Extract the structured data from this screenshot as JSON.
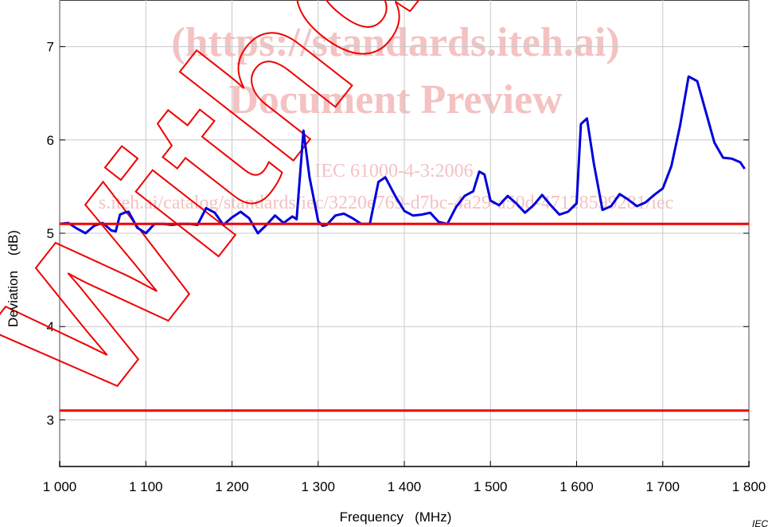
{
  "chart_data": {
    "type": "line",
    "xlabel": "Frequency   (MHz)",
    "ylabel": "Deviation    (dB)",
    "xlim": [
      1000,
      1800
    ],
    "ylim": [
      2.5,
      7.5
    ],
    "x_ticks": [
      1000,
      1100,
      1200,
      1300,
      1400,
      1500,
      1600,
      1700,
      1800
    ],
    "x_tick_labels": [
      "1 000",
      "1 100",
      "1 200",
      "1 300",
      "1 400",
      "1 500",
      "1 600",
      "1 700",
      "1 800"
    ],
    "y_ticks": [
      3,
      4,
      5,
      6,
      7
    ],
    "y_tick_labels": [
      "3",
      "4",
      "5",
      "6",
      "7"
    ],
    "grid": true,
    "series": [
      {
        "color": "#0000dd",
        "x": [
          1000,
          1010,
          1020,
          1030,
          1040,
          1050,
          1060,
          1065,
          1070,
          1075,
          1080,
          1090,
          1100,
          1110,
          1120,
          1130,
          1140,
          1150,
          1160,
          1170,
          1180,
          1190,
          1200,
          1210,
          1220,
          1230,
          1240,
          1250,
          1260,
          1270,
          1275,
          1283,
          1290,
          1300,
          1305,
          1310,
          1320,
          1330,
          1340,
          1350,
          1360,
          1370,
          1378,
          1390,
          1400,
          1410,
          1420,
          1430,
          1440,
          1450,
          1460,
          1470,
          1480,
          1487,
          1493,
          1500,
          1510,
          1520,
          1530,
          1540,
          1550,
          1560,
          1570,
          1580,
          1590,
          1600,
          1605,
          1612,
          1620,
          1630,
          1640,
          1650,
          1660,
          1670,
          1680,
          1690,
          1700,
          1710,
          1720,
          1730,
          1740,
          1750,
          1760,
          1770,
          1780,
          1790,
          1795
        ],
        "y": [
          5.1,
          5.11,
          5.05,
          5.0,
          5.08,
          5.11,
          5.03,
          5.02,
          5.2,
          5.22,
          5.23,
          5.06,
          5.0,
          5.1,
          5.1,
          5.09,
          5.1,
          5.1,
          5.09,
          5.27,
          5.22,
          5.09,
          5.17,
          5.23,
          5.16,
          5.0,
          5.09,
          5.19,
          5.11,
          5.18,
          5.15,
          6.1,
          5.6,
          5.13,
          5.08,
          5.09,
          5.19,
          5.21,
          5.16,
          5.1,
          5.1,
          5.55,
          5.6,
          5.39,
          5.24,
          5.19,
          5.2,
          5.22,
          5.12,
          5.1,
          5.28,
          5.4,
          5.45,
          5.66,
          5.63,
          5.35,
          5.3,
          5.4,
          5.32,
          5.22,
          5.3,
          5.41,
          5.3,
          5.2,
          5.23,
          5.32,
          6.17,
          6.23,
          5.75,
          5.25,
          5.29,
          5.42,
          5.36,
          5.29,
          5.33,
          5.41,
          5.48,
          5.72,
          6.15,
          6.68,
          6.63,
          6.3,
          5.97,
          5.81,
          5.8,
          5.76,
          5.69
        ]
      },
      {
        "color": "#ee0000",
        "x": [
          1000,
          1800
        ],
        "y": [
          5.1,
          5.1
        ]
      },
      {
        "color": "#ee0000",
        "x": [
          1000,
          1800
        ],
        "y": [
          3.1,
          3.1
        ]
      }
    ]
  },
  "watermark": {
    "line1": "(https://standards.iteh.ai)",
    "line2": "Document Preview",
    "line3": "IEC 61000-4-3:2006",
    "line4": "s.iteh.ai/catalog/standards/iec/3220e769-d7bc-4a29-a50d-47128599281/iec",
    "stamp": "Withdrawn",
    "color": "#ee0000"
  },
  "corner_ref": "IEC"
}
